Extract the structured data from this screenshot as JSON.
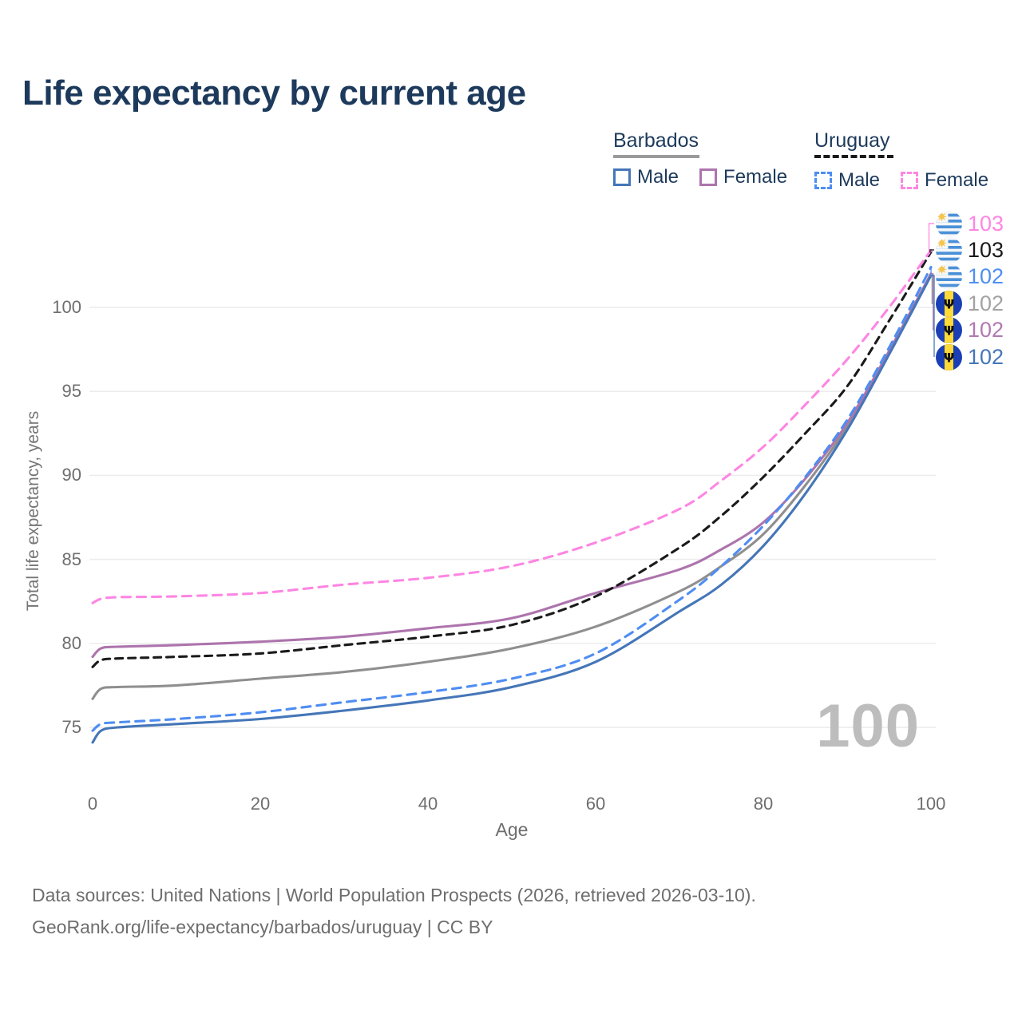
{
  "title": "Life expectancy by current age",
  "legend": {
    "groups": [
      {
        "label": "Barbados",
        "line_style": "solid",
        "underline_color": "#9a9a9a",
        "items": [
          {
            "label": "Male",
            "color": "#4576b8",
            "dashed": false
          },
          {
            "label": "Female",
            "color": "#ad74ad",
            "dashed": false
          }
        ]
      },
      {
        "label": "Uruguay",
        "line_style": "dashed",
        "underline_color": "#1a1a1a",
        "items": [
          {
            "label": "Male",
            "color": "#4e8df2",
            "dashed": true
          },
          {
            "label": "Female",
            "color": "#fd86e3",
            "dashed": true
          }
        ]
      }
    ]
  },
  "axes": {
    "y_title": "Total life expectancy, years",
    "x_title": "Age"
  },
  "watermark": "100",
  "footer": {
    "line1": "Data sources: United Nations | World Population Prospects (2026, retrieved 2026-03-10).",
    "line2": "GeoRank.org/life-expectancy/barbados/uruguay | CC BY"
  },
  "chart_data": {
    "type": "line",
    "title": "Life expectancy by current age",
    "xlabel": "Age",
    "ylabel": "Total life expectancy, years",
    "xlim": [
      0,
      100
    ],
    "ylim": [
      73,
      104.5
    ],
    "xticks": [
      0,
      20,
      40,
      60,
      80,
      100
    ],
    "yticks": [
      75,
      80,
      85,
      90,
      95,
      100
    ],
    "grid": "horizontal-only",
    "legend_position": "top-right",
    "x": [
      0,
      1,
      3,
      10,
      20,
      30,
      40,
      50,
      60,
      70,
      75,
      80,
      85,
      90,
      95,
      100
    ],
    "series": [
      {
        "name": "Uruguay Female",
        "country": "Uruguay",
        "sex": "Female",
        "color": "#fd86e3",
        "dashed": true,
        "end_label": "103",
        "label_color": "#fd86e3",
        "flag": "uruguay",
        "values": [
          82.4,
          82.65,
          82.75,
          82.8,
          83.0,
          83.5,
          83.9,
          84.6,
          86.0,
          88.0,
          89.7,
          91.7,
          94.2,
          96.9,
          100.0,
          103.4
        ]
      },
      {
        "name": "Uruguay (all)",
        "country": "Uruguay",
        "sex": "All",
        "color": "#1a1a1a",
        "dashed": true,
        "end_label": "103",
        "label_color": "#1a1a1a",
        "flag": "uruguay",
        "values": [
          78.6,
          79.0,
          79.1,
          79.2,
          79.4,
          79.9,
          80.4,
          81.1,
          82.8,
          85.7,
          87.6,
          89.9,
          92.5,
          95.3,
          99.2,
          103.3
        ]
      },
      {
        "name": "Uruguay Male",
        "country": "Uruguay",
        "sex": "Male",
        "color": "#4e8df2",
        "dashed": true,
        "end_label": "102",
        "label_color": "#4e8df2",
        "flag": "uruguay",
        "values": [
          74.8,
          75.2,
          75.3,
          75.5,
          75.9,
          76.5,
          77.1,
          77.9,
          79.4,
          82.6,
          84.6,
          87.0,
          89.9,
          93.3,
          97.6,
          102.4
        ]
      },
      {
        "name": "Barbados (all)",
        "country": "Barbados",
        "sex": "All",
        "color": "#8f8f8f",
        "dashed": false,
        "end_label": "102",
        "label_color": "#a3a3a3",
        "flag": "barbados",
        "values": [
          76.7,
          77.3,
          77.4,
          77.5,
          77.9,
          78.3,
          78.9,
          79.7,
          81.0,
          83.1,
          84.6,
          86.5,
          89.4,
          92.9,
          97.3,
          102.0
        ]
      },
      {
        "name": "Barbados Female",
        "country": "Barbados",
        "sex": "Female",
        "color": "#ad74ad",
        "dashed": false,
        "end_label": "102",
        "label_color": "#b279b2",
        "flag": "barbados",
        "values": [
          79.2,
          79.7,
          79.8,
          79.9,
          80.1,
          80.4,
          80.9,
          81.5,
          83.0,
          84.4,
          85.6,
          87.2,
          89.8,
          93.1,
          97.4,
          102.0
        ]
      },
      {
        "name": "Barbados Male",
        "country": "Barbados",
        "sex": "Male",
        "color": "#4576b8",
        "dashed": false,
        "end_label": "102",
        "label_color": "#4576b8",
        "flag": "barbados",
        "values": [
          74.1,
          74.8,
          75.0,
          75.2,
          75.5,
          76.0,
          76.6,
          77.4,
          78.9,
          81.9,
          83.5,
          85.8,
          88.9,
          92.7,
          97.2,
          101.9
        ]
      }
    ]
  }
}
